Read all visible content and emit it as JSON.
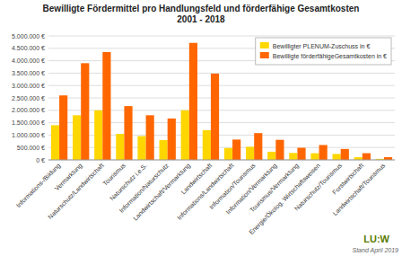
{
  "chart_data": {
    "type": "bar",
    "title": "Bewilligte Fördermittel pro Handlungsfeld und förderfähige Gesamtkosten\n2001 - 2018",
    "categories": [
      "Informations-/Bildung",
      "Vermarktung",
      "Naturschutz/Landwirtschaft",
      "Tourismus",
      "Naturschutz i.e.S.",
      "Information/Naturschutz",
      "Landwirtschaft/Vermarktung",
      "Landwirtschaft",
      "Informations/Landwirtschaft",
      "Information/Tourismus",
      "Information/Vermarktung",
      "Tourismus/Vermarktung",
      "Energie/Ökolog. Wirtschaftsweisen",
      "Naturschutz/Tourismus",
      "Forstwirtschaft",
      "Landwirtschaft/Tourismus"
    ],
    "series": [
      {
        "name": "Bewilligter PLENUM-Zuschuss in €",
        "color": "#FFD700",
        "values": [
          1400000,
          1800000,
          2000000,
          1050000,
          960000,
          800000,
          2000000,
          1200000,
          480000,
          530000,
          330000,
          280000,
          270000,
          240000,
          110000,
          40000
        ]
      },
      {
        "name": "Bewilligte förderfähigeGesamtkosten in €",
        "color": "#FF6600",
        "values": [
          2600000,
          3900000,
          4350000,
          2170000,
          1800000,
          1670000,
          4720000,
          3480000,
          820000,
          1080000,
          810000,
          490000,
          600000,
          440000,
          270000,
          110000
        ]
      }
    ],
    "ylim": [
      0,
      5000000
    ],
    "yticks": [
      {
        "value": 0,
        "label": "0 €"
      },
      {
        "value": 500000,
        "label": "500.000 €"
      },
      {
        "value": 1000000,
        "label": "1.000.000 €"
      },
      {
        "value": 1500000,
        "label": "1.500.000 €"
      },
      {
        "value": 2000000,
        "label": "2.000.000 €"
      },
      {
        "value": 2500000,
        "label": "2.500.000 €"
      },
      {
        "value": 3000000,
        "label": "3.000.000 €"
      },
      {
        "value": 3500000,
        "label": "3.500.000 €"
      },
      {
        "value": 4000000,
        "label": "4.000.000 €"
      },
      {
        "value": 4500000,
        "label": "4.500.000 €"
      },
      {
        "value": 5000000,
        "label": "5.000.000 €"
      }
    ],
    "grid": true,
    "legend": "upper right",
    "annotations": [
      "Stand April 2019",
      "LU:W"
    ]
  }
}
